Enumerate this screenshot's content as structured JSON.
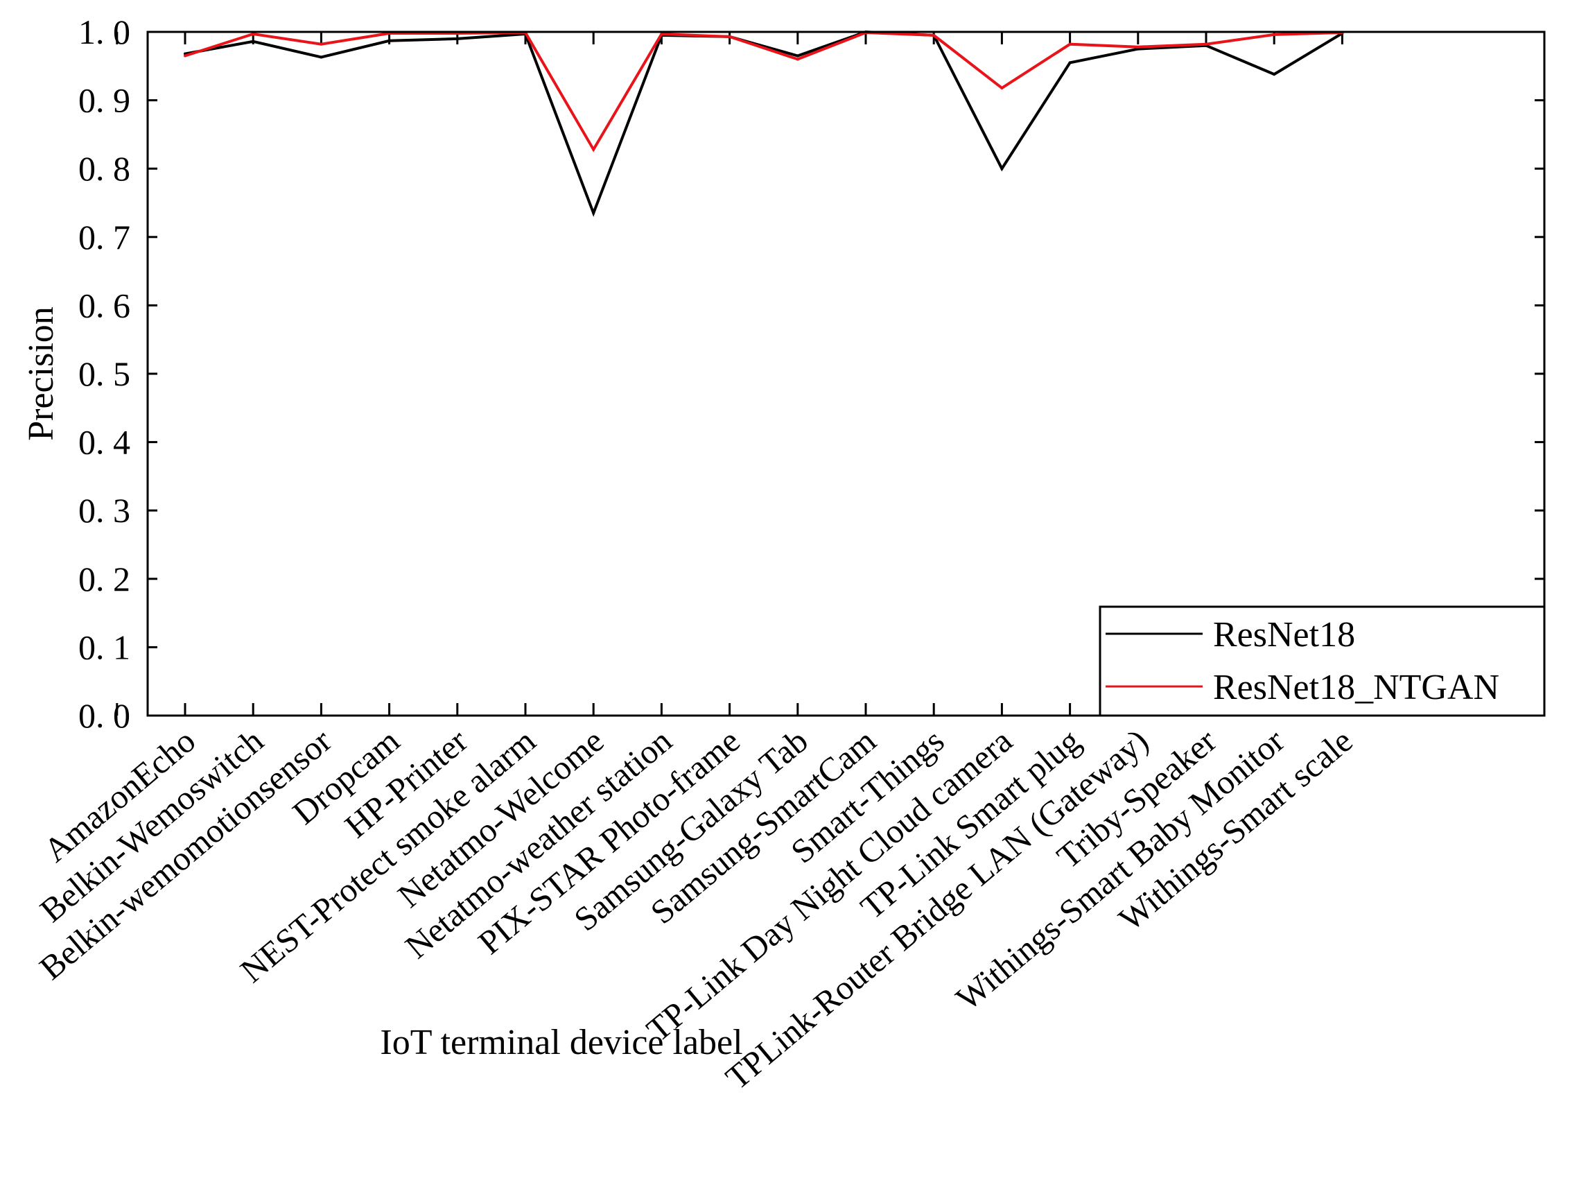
{
  "chart_data": {
    "type": "line",
    "ylabel": "Precision",
    "xlabel": "IoT terminal device label",
    "ylim": [
      0.0,
      1.0
    ],
    "yticks": [
      "0.0",
      "0.1",
      "0.2",
      "0.3",
      "0.4",
      "0.5",
      "0.6",
      "0.7",
      "0.8",
      "0.9",
      "1.0"
    ],
    "categories": [
      "AmazonEcho",
      "Belkin-Wemoswitch",
      "Belkin-wemomotionsensor",
      "Dropcam",
      "HP-Printer",
      "NEST-Protect smoke alarm",
      "Netatmo-Welcome",
      "Netatmo-weather station",
      "PIX-STAR Photo-frame",
      "Samsung-Galaxy Tab",
      "Samsung-SmartCam",
      "Smart-Things",
      "TP-Link Day Night Cloud camera",
      "TP-Link Smart plug",
      "TPLink-Router Bridge LAN (Gateway)",
      "Triby-Speaker",
      "Withings-Smart Baby Monitor",
      "Withings-Smart scale"
    ],
    "series": [
      {
        "name": "ResNet18",
        "color": "#000000",
        "values": [
          0.968,
          0.986,
          0.963,
          0.987,
          0.99,
          0.997,
          0.735,
          0.995,
          0.993,
          0.965,
          1.0,
          0.995,
          0.8,
          0.955,
          0.975,
          0.98,
          0.938,
          0.998
        ]
      },
      {
        "name": "ResNet18_NTGAN",
        "color": "#e8141a",
        "values": [
          0.965,
          0.997,
          0.982,
          0.998,
          0.998,
          0.999,
          0.828,
          0.997,
          0.993,
          0.96,
          0.999,
          0.995,
          0.918,
          0.982,
          0.978,
          0.982,
          0.996,
          0.999
        ]
      }
    ],
    "legend_position": "bottom-right",
    "grid": false
  }
}
